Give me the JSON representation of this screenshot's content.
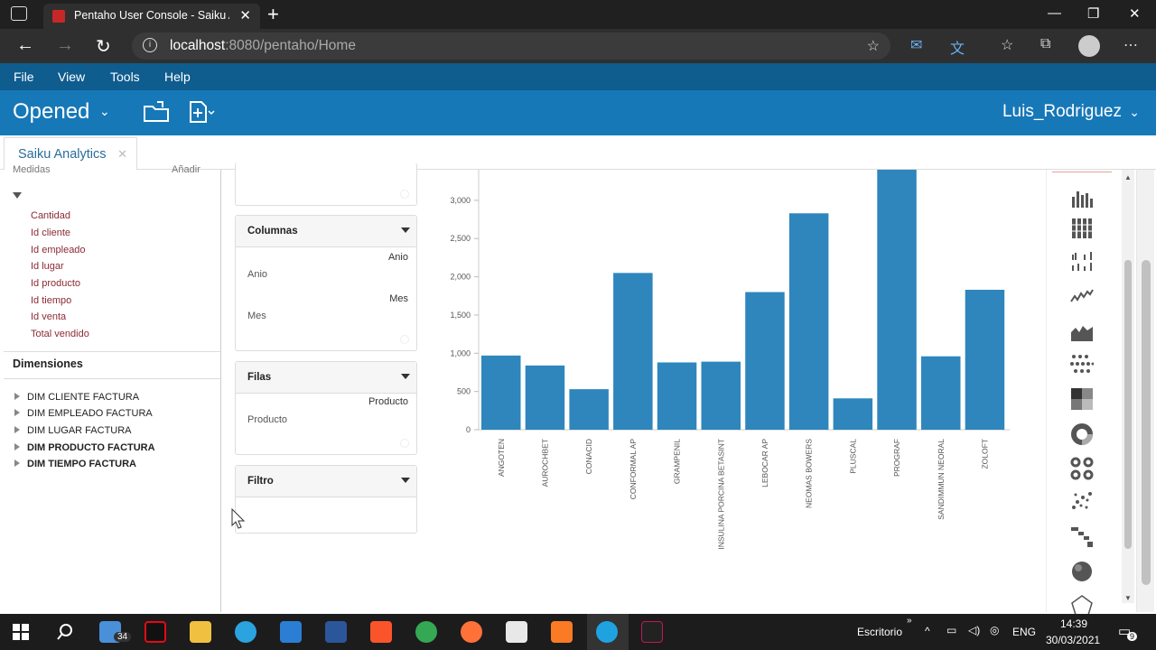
{
  "browser": {
    "tab_title": "Pentaho User Console - Saiku An",
    "tab_close": "✕",
    "new_tab": "+",
    "url_host": "localhost",
    "url_rest": ":8080/pentaho/Home",
    "window_controls": [
      "—",
      "❐",
      "✕"
    ]
  },
  "menubar": {
    "items": [
      "File",
      "View",
      "Tools",
      "Help"
    ]
  },
  "header": {
    "opened": "Opened",
    "user": "Luis_Rodriguez"
  },
  "tabstrip": {
    "tab_label": "Saiku Analytics",
    "tab_close": "✕"
  },
  "left": {
    "cut_label_1": "Medidas",
    "cut_label_2": "Añadir",
    "measures": [
      "Cantidad",
      "Id cliente",
      "Id empleado",
      "Id lugar",
      "Id producto",
      "Id tiempo",
      "Id venta",
      "Total vendido"
    ],
    "dimensions_title": "Dimensiones",
    "dimensions": [
      "DIM CLIENTE FACTURA",
      "DIM EMPLEADO FACTURA",
      "DIM LUGAR FACTURA",
      "DIM PRODUCTO FACTURA",
      "DIM TIEMPO FACTURA"
    ]
  },
  "boxes": {
    "columnas": {
      "title": "Columnas",
      "r1": "Anio",
      "l1": "Anio",
      "r2": "Mes",
      "l2": "Mes"
    },
    "filas": {
      "title": "Filas",
      "r1": "Producto",
      "l1": "Producto"
    },
    "filtro": {
      "title": "Filtro"
    }
  },
  "chart_data": {
    "type": "bar",
    "categories": [
      "ANGOTEN",
      "AUROCHBET",
      "CONACID",
      "CONFORMAL AP",
      "GRAMPENIL",
      "INSULINA PORCINA BETASINT",
      "LEBOCAR AP",
      "NEOMAS BOWERS",
      "PLUSCAL",
      "PROGRAF",
      "SANDIMMUN NEORAL",
      "ZOLOFT"
    ],
    "values": [
      970,
      840,
      530,
      2050,
      880,
      890,
      1800,
      2830,
      410,
      3440,
      960,
      1830
    ],
    "ylim": [
      0,
      3400
    ],
    "yticks": [
      0,
      500,
      1000,
      1500,
      2000,
      2500,
      3000
    ],
    "ytick_labels": [
      "0",
      "500",
      "1,000",
      "1,500",
      "2,000",
      "2,500",
      "3,000"
    ],
    "bar_color": "#2e86bd",
    "grid": false
  },
  "taskbar": {
    "mail_badge": "34",
    "tray_label": "Escritorio",
    "lang": "ENG",
    "time": "14:39",
    "date": "30/03/2021",
    "notif": "9"
  },
  "colors": {
    "menubar": "#0f5c8f",
    "header": "#1778b8",
    "measure_text": "#8b2a35"
  }
}
